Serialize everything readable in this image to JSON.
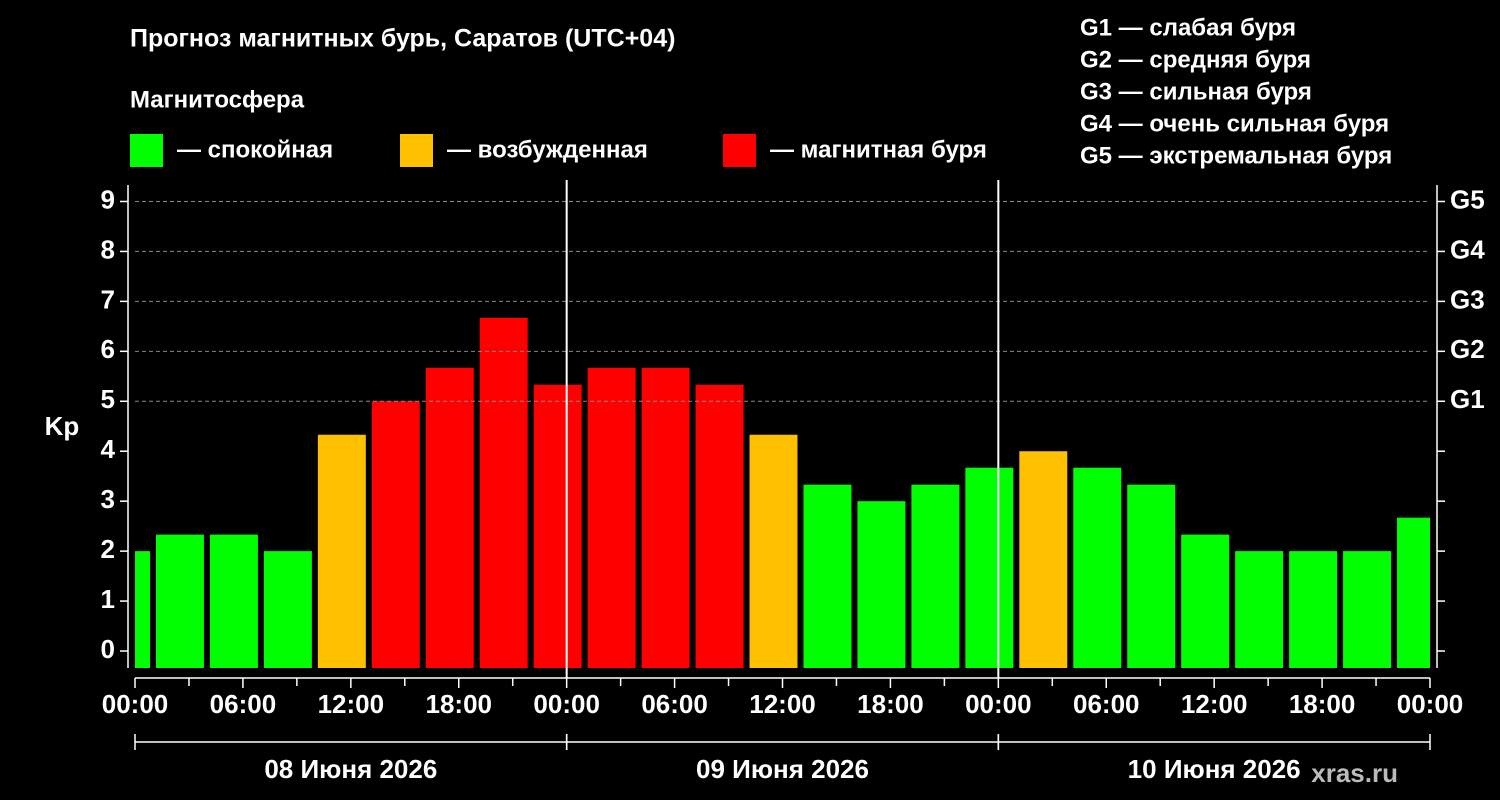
{
  "chart_data": {
    "type": "bar",
    "title": "Прогноз магнитных бурь, Саратов (UTC+04)",
    "legend_title": "Магнитосфера",
    "legend": [
      {
        "label": "— спокойная",
        "color": "#00ff00"
      },
      {
        "label": "— возбужденная",
        "color": "#ffc000"
      },
      {
        "label": "— магнитная буря",
        "color": "#ff0000"
      }
    ],
    "scale_notes": [
      "G1 — слабая буря",
      "G2 — средняя буря",
      "G3 — сильная буря",
      "G4 — очень сильная буря",
      "G5 — экстремальная буря"
    ],
    "ylabel": "Kp",
    "x": [
      -0.5,
      2.5,
      5.5,
      8.5,
      11.5,
      14.5,
      17.5,
      20.5,
      23.5,
      26.5,
      29.5,
      32.5,
      35.5,
      38.5,
      41.5,
      44.5,
      47.5,
      50.5,
      53.5,
      56.5,
      59.5,
      62.5,
      65.5,
      68.5,
      71.5
    ],
    "bar_width": 3,
    "values": [
      2,
      2.33,
      2.33,
      2,
      4.33,
      5,
      5.67,
      6.67,
      5.33,
      5.67,
      5.67,
      5.33,
      4.33,
      3.33,
      3,
      3.33,
      3.67,
      4,
      3.67,
      3.33,
      2.33,
      2,
      2,
      2,
      2.67
    ],
    "colors": [
      "#00ff00",
      "#00ff00",
      "#00ff00",
      "#00ff00",
      "#ffc000",
      "#ff0000",
      "#ff0000",
      "#ff0000",
      "#ff0000",
      "#ff0000",
      "#ff0000",
      "#ff0000",
      "#ffc000",
      "#00ff00",
      "#00ff00",
      "#00ff00",
      "#00ff00",
      "#ffc000",
      "#00ff00",
      "#00ff00",
      "#00ff00",
      "#00ff00",
      "#00ff00",
      "#00ff00",
      "#00ff00"
    ],
    "xlim": [
      0,
      72
    ],
    "xticks": [
      {
        "value": 0,
        "label": "00:00"
      },
      {
        "value": 6,
        "label": "06:00"
      },
      {
        "value": 12,
        "label": "12:00"
      },
      {
        "value": 18,
        "label": "18:00"
      },
      {
        "value": 24,
        "label": "00:00"
      },
      {
        "value": 30,
        "label": "06:00"
      },
      {
        "value": 36,
        "label": "12:00"
      },
      {
        "value": 42,
        "label": "18:00"
      },
      {
        "value": 48,
        "label": "00:00"
      },
      {
        "value": 54,
        "label": "06:00"
      },
      {
        "value": 60,
        "label": "12:00"
      },
      {
        "value": 66,
        "label": "18:00"
      },
      {
        "value": 72,
        "label": "00:00"
      }
    ],
    "xminorticks": [
      3,
      9,
      15,
      21,
      27,
      33,
      39,
      45,
      51,
      57,
      63,
      69
    ],
    "day_separators": [
      24,
      48
    ],
    "day_spans": [
      {
        "label": "08 Июня 2026",
        "start": 0,
        "end": 24
      },
      {
        "label": "09 Июня 2026",
        "start": 24,
        "end": 48
      },
      {
        "label": "10 Июня 2026",
        "start": 48,
        "end": 72
      }
    ],
    "ylim": [
      -0.34,
      9.33
    ],
    "yticks": [
      0,
      1,
      2,
      3,
      4,
      5,
      6,
      7,
      8,
      9
    ],
    "y2lim": [
      -0.34,
      9.33
    ],
    "y2ticks": [
      {
        "value": 5,
        "label": "G1"
      },
      {
        "value": 6,
        "label": "G2"
      },
      {
        "value": 7,
        "label": "G3"
      },
      {
        "value": 8,
        "label": "G4"
      },
      {
        "value": 9,
        "label": "G5"
      }
    ],
    "grid": true,
    "watermark": "xras.ru"
  }
}
